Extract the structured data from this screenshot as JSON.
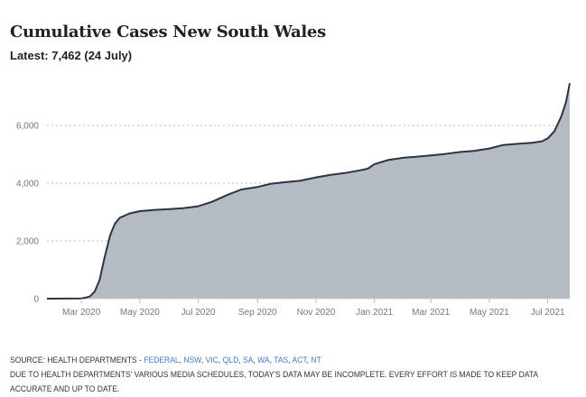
{
  "chart_data": {
    "type": "area",
    "title": "Cumulative Cases New South Wales",
    "subtitle": "Latest: 7,462 (24 July)",
    "xlabel": "",
    "ylabel": "",
    "x_ticks": [
      "Mar 2020",
      "May 2020",
      "Jul 2020",
      "Sep 2020",
      "Nov 2020",
      "Jan 2021",
      "Mar 2021",
      "May 2021",
      "Jul 2021"
    ],
    "x_tick_dates": [
      "2020-03-01",
      "2020-05-01",
      "2020-07-01",
      "2020-09-01",
      "2020-11-01",
      "2021-01-01",
      "2021-03-01",
      "2021-05-01",
      "2021-07-01"
    ],
    "y_ticks": [
      "0",
      "2,000",
      "4,000",
      "6,000"
    ],
    "y_tick_values": [
      0,
      2000,
      4000,
      6000
    ],
    "xlim": [
      "2020-01-25",
      "2021-07-24"
    ],
    "ylim": [
      0,
      7600
    ],
    "grid": "horizontal dotted",
    "colors": {
      "line": "#2b3544",
      "area": "#b5bbc3",
      "grid": "#bbbbbb"
    },
    "series": [
      {
        "x": [
          "2020-01-25",
          "2020-03-01",
          "2020-03-05",
          "2020-03-10",
          "2020-03-15",
          "2020-03-20",
          "2020-03-25",
          "2020-03-31",
          "2020-04-05",
          "2020-04-10",
          "2020-04-20",
          "2020-05-01",
          "2020-05-15",
          "2020-06-01",
          "2020-06-15",
          "2020-07-01",
          "2020-07-15",
          "2020-08-01",
          "2020-08-15",
          "2020-09-01",
          "2020-09-15",
          "2020-10-01",
          "2020-10-15",
          "2020-11-01",
          "2020-11-15",
          "2020-12-01",
          "2020-12-15",
          "2020-12-25",
          "2021-01-01",
          "2021-01-15",
          "2021-02-01",
          "2021-02-15",
          "2021-03-01",
          "2021-03-15",
          "2021-04-01",
          "2021-04-15",
          "2021-05-01",
          "2021-05-15",
          "2021-06-01",
          "2021-06-15",
          "2021-06-25",
          "2021-07-01",
          "2021-07-08",
          "2021-07-15",
          "2021-07-20",
          "2021-07-24"
        ],
        "values": [
          0,
          10,
          30,
          80,
          250,
          650,
          1400,
          2200,
          2600,
          2800,
          2950,
          3030,
          3070,
          3100,
          3130,
          3200,
          3350,
          3600,
          3780,
          3870,
          3980,
          4040,
          4080,
          4200,
          4280,
          4350,
          4430,
          4500,
          4660,
          4800,
          4880,
          4920,
          4960,
          5010,
          5080,
          5120,
          5200,
          5320,
          5370,
          5400,
          5450,
          5550,
          5800,
          6300,
          6800,
          7462
        ]
      }
    ]
  },
  "footer": {
    "source_prefix": "SOURCE: HEALTH DEPARTMENTS - ",
    "links": [
      "FEDERAL",
      "NSW",
      "VIC",
      "QLD",
      "SA",
      "WA",
      "TAS",
      "ACT",
      "NT"
    ],
    "note": "DUE TO HEALTH DEPARTMENTS' VARIOUS MEDIA SCHEDULES, TODAY'S DATA MAY BE INCOMPLETE. EVERY EFFORT IS MADE TO KEEP DATA",
    "note2": "ACCURATE AND UP TO DATE."
  }
}
